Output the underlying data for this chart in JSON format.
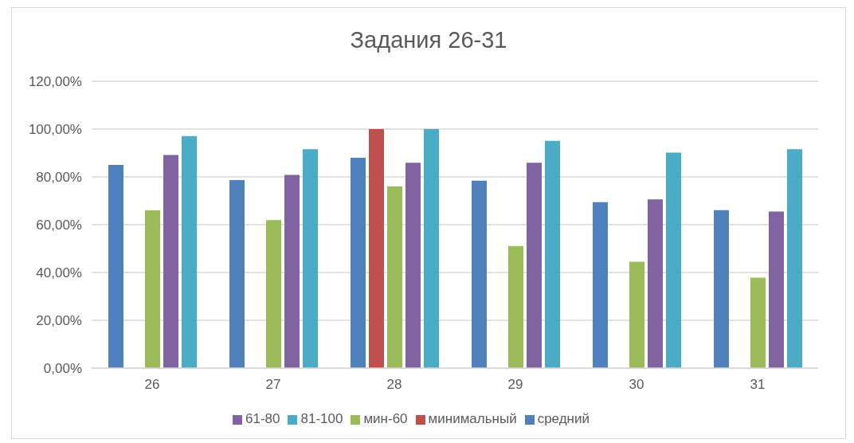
{
  "chart_data": {
    "type": "bar",
    "title": "Задания 26-31",
    "categories": [
      "26",
      "27",
      "28",
      "29",
      "30",
      "31"
    ],
    "series": [
      {
        "name": "средний",
        "color": "#4f81bd",
        "values": [
          85,
          78.7,
          88,
          78.4,
          69.4,
          66.1
        ]
      },
      {
        "name": "минимальный",
        "color": "#c0504d",
        "values": [
          null,
          null,
          100,
          null,
          null,
          null
        ]
      },
      {
        "name": "мин-60",
        "color": "#9bbb59",
        "values": [
          66,
          61.9,
          76,
          51.1,
          44.5,
          37.8
        ]
      },
      {
        "name": "61-80",
        "color": "#8064a2",
        "values": [
          89.2,
          80.8,
          85.9,
          85.9,
          70.6,
          65.5
        ]
      },
      {
        "name": "81-100",
        "color": "#4bacc6",
        "values": [
          97.1,
          91.6,
          100,
          95.1,
          90.2,
          91.6
        ]
      }
    ],
    "ylim": [
      0,
      120
    ],
    "yticks": [
      {
        "value": 0,
        "label": "0,00%"
      },
      {
        "value": 20,
        "label": "20,00%"
      },
      {
        "value": 40,
        "label": "40,00%"
      },
      {
        "value": 60,
        "label": "60,00%"
      },
      {
        "value": 80,
        "label": "80,00%"
      },
      {
        "value": 100,
        "label": "100,00%"
      },
      {
        "value": 120,
        "label": "120,00%"
      }
    ],
    "grid": "y",
    "legend": "bottom"
  }
}
